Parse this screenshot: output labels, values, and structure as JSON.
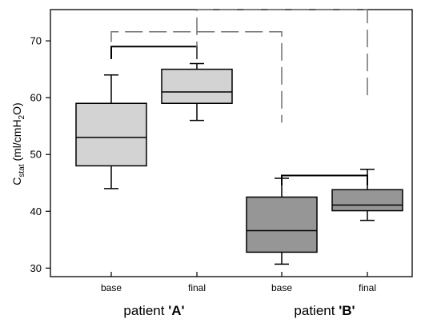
{
  "chart_data": {
    "type": "box",
    "ylabel": {
      "main": "C",
      "sub": "stat",
      "unit_pre": " (ml/cmH",
      "unit_sub": "2",
      "unit_post": "O)"
    },
    "ylim": [
      28.5,
      75.5
    ],
    "yticks": [
      30,
      40,
      50,
      60,
      70
    ],
    "grid": false,
    "groups": [
      {
        "prefix": "patient ",
        "name": "'A'"
      },
      {
        "prefix": "patient ",
        "name": "'B'"
      }
    ],
    "boxes": [
      {
        "label": "base",
        "group": 0,
        "whisker_low": 44.0,
        "q1": 48.0,
        "median": 53.0,
        "q3": 59.0,
        "whisker_high": 64.0,
        "color": "#d3d3d3"
      },
      {
        "label": "final",
        "group": 0,
        "whisker_low": 56.0,
        "q1": 59.0,
        "median": 61.0,
        "q3": 65.0,
        "whisker_high": 66.0,
        "color": "#d3d3d3"
      },
      {
        "label": "base",
        "group": 1,
        "whisker_low": 30.7,
        "q1": 32.8,
        "median": 36.6,
        "q3": 42.5,
        "whisker_high": 45.8,
        "color": "#969696"
      },
      {
        "label": "final",
        "group": 1,
        "whisker_low": 38.4,
        "q1": 40.1,
        "median": 41.1,
        "q3": 43.8,
        "whisker_high": 47.4,
        "color": "#969696"
      }
    ],
    "comparison_brackets": [
      {
        "from": 0,
        "to": 1,
        "style": "solid",
        "y": 69.0,
        "from_end": 66.8,
        "to_end": 66.8
      },
      {
        "from": 2,
        "to": 3,
        "style": "solid",
        "y": 46.3,
        "from_end": 44.6,
        "to_end": 44.6
      },
      {
        "from": 0,
        "to": 2,
        "style": "dashed",
        "y": 71.6,
        "from_end": 69.8,
        "to_end": 55.6
      },
      {
        "from": 1,
        "to": 3,
        "style": "dashed",
        "y": 75.5,
        "from_end": 66.8,
        "to_end": 59.6
      }
    ],
    "colors": {
      "axis": "#000000",
      "box_stroke": "#000000",
      "light_fill": "#d3d3d3",
      "dark_fill": "#969696",
      "dashed": "#707070"
    }
  }
}
